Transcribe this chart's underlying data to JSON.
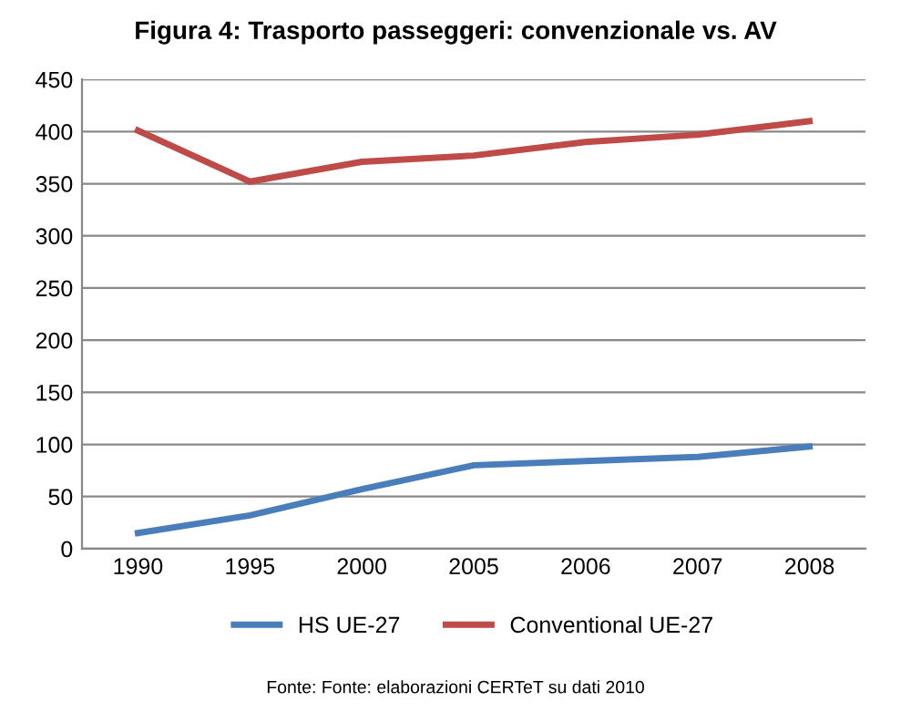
{
  "chart_data": {
    "type": "line",
    "title": "Figura 4: Trasporto passeggeri: convenzionale vs. AV",
    "categories": [
      "1990",
      "1995",
      "2000",
      "2005",
      "2006",
      "2007",
      "2008"
    ],
    "series": [
      {
        "name": "HS UE-27",
        "color": "#4a7ebb",
        "values": [
          15,
          32,
          57,
          80,
          84,
          88,
          98
        ]
      },
      {
        "name": "Conventional UE-27",
        "color": "#be4b48",
        "values": [
          401,
          352,
          371,
          377,
          390,
          397,
          410
        ]
      }
    ],
    "ylim": [
      0,
      450
    ],
    "yticks": [
      0,
      50,
      100,
      150,
      200,
      250,
      300,
      350,
      400,
      450
    ],
    "grid": "y",
    "legend": "bottom",
    "marker": "none",
    "line_style": "solid",
    "annotations": [
      "Fonte: Fonte: elaborazioni CERTeT su dati 2010"
    ]
  }
}
